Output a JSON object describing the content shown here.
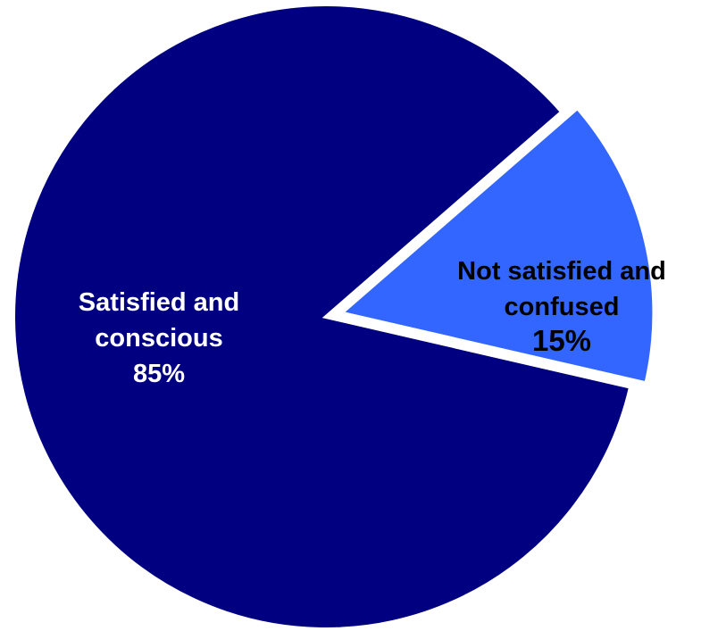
{
  "chart_data": {
    "type": "pie",
    "title": "",
    "unit": "%",
    "slices": [
      {
        "label_lines": [
          "Satisfied and",
          "conscious"
        ],
        "value": 85,
        "value_label": "85%",
        "color": "#000080",
        "text_color": "#ffffff"
      },
      {
        "label_lines": [
          "Not satisfied and",
          "confused"
        ],
        "value": 15,
        "value_label": "15%",
        "color": "#3366ff",
        "text_color": "#000000",
        "exploded": true
      }
    ],
    "legend": "none"
  }
}
